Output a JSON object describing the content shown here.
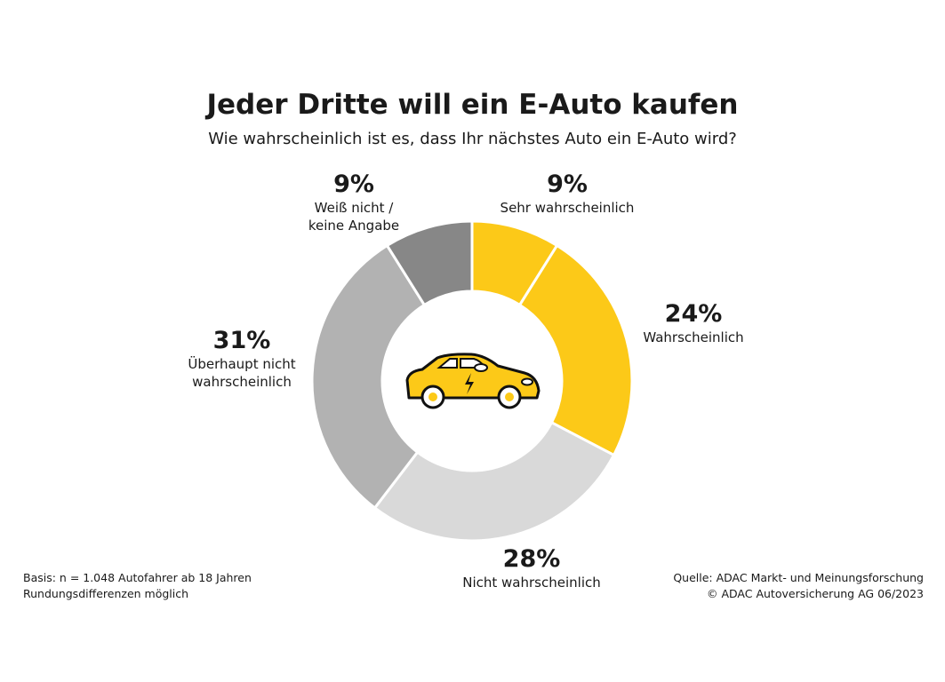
{
  "chart_data": {
    "type": "pie",
    "variant": "donut",
    "title": "Jeder Dritte will ein E-Auto kaufen",
    "subtitle": "Wie wahrscheinlich ist es, dass Ihr nächstes Auto ein E-Auto wird?",
    "slices": [
      {
        "label": "Sehr wahrscheinlich",
        "value": 9,
        "display": "9%",
        "color": "#fcc918"
      },
      {
        "label": "Wahrscheinlich",
        "value": 24,
        "display": "24%",
        "color": "#fcc918"
      },
      {
        "label": "Nicht wahrscheinlich",
        "value": 28,
        "display": "28%",
        "color": "#d9d9d9"
      },
      {
        "label": "Überhaupt nicht wahrscheinlich",
        "label_lines": [
          "Überhaupt nicht",
          "wahrscheinlich"
        ],
        "value": 31,
        "display": "31%",
        "color": "#b2b2b2"
      },
      {
        "label": "Weiß nicht / keine Angabe",
        "label_lines": [
          "Weiß nicht /",
          "keine Angabe"
        ],
        "value": 9,
        "display": "9%",
        "color": "#878787"
      }
    ],
    "start": "top",
    "direction": "clockwise",
    "center_icon": "electric-car-icon"
  },
  "footer": {
    "basis": "Basis: n = 1.048 Autofahrer ab 18 Jahren",
    "rounding": "Rundungsdifferenzen möglich",
    "source": "Quelle: ADAC Markt- und Meinungsforschung",
    "copyright": "© ADAC Autoversicherung AG 06/2023"
  }
}
